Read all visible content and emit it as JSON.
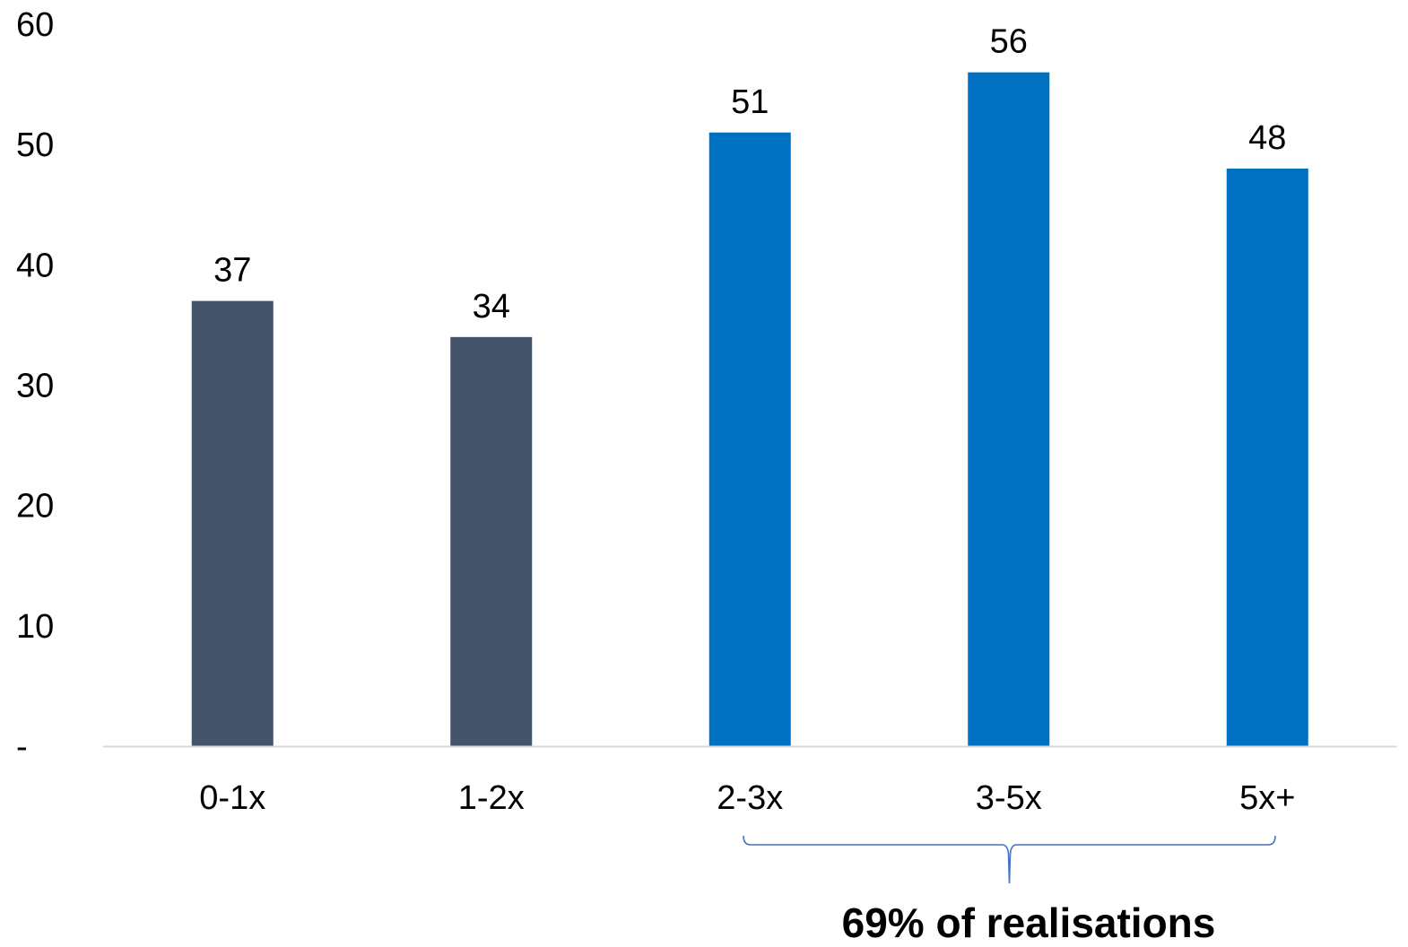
{
  "chart_data": {
    "type": "bar",
    "categories": [
      "0-1x",
      "1-2x",
      "2-3x",
      "3-5x",
      "5x+"
    ],
    "values": [
      37,
      34,
      51,
      56,
      48
    ],
    "value_labels": [
      "37",
      "34",
      "51",
      "56",
      "48"
    ],
    "colors": [
      "#44546A",
      "#44546A",
      "#0070C0",
      "#0070C0",
      "#0070C0"
    ],
    "title": "",
    "xlabel": "",
    "ylabel": "",
    "ylim": [
      0,
      60
    ],
    "y_ticks": [
      0,
      10,
      20,
      30,
      40,
      50,
      60
    ],
    "y_tick_labels": [
      "-",
      "10",
      "20",
      "30",
      "40",
      "50",
      "60"
    ],
    "grid": false,
    "legend": "none",
    "axis_color": "#D9D9D9",
    "bracket_color": "#4472C4",
    "annotation": {
      "text": "69% of realisations",
      "spans_categories": [
        "2-3x",
        "5x+"
      ]
    }
  }
}
